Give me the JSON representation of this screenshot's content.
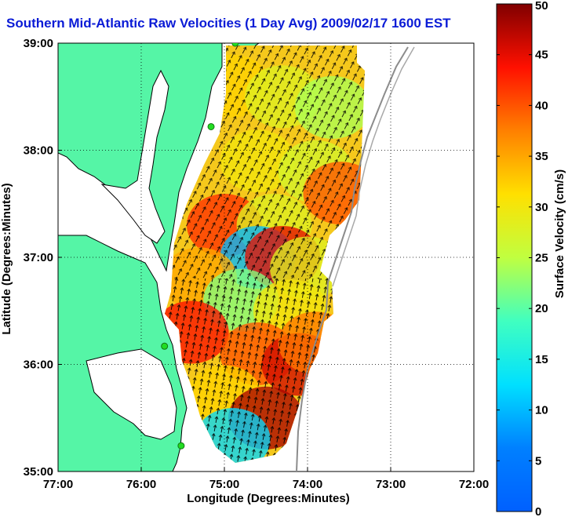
{
  "title": "Southern Mid-Atlantic Raw Velocities (1 Day Avg) 2009/02/17 1600 EST",
  "colors": {
    "land": "#55f5a6",
    "coast": "#000000",
    "grid": "#000000",
    "isobath": "#8c8c8c",
    "site": "#22dd22",
    "title": "#0a1bd6"
  },
  "chart_data": {
    "type": "heatmap",
    "xlabel": "Longitude (Degrees:Minutes)",
    "ylabel": "Latitude (Degrees:Minutes)",
    "xlim": [
      -77,
      -72
    ],
    "ylim": [
      35,
      39
    ],
    "xticks": [
      -77,
      -76,
      -75,
      -74,
      -73,
      -72
    ],
    "yticks": [
      35,
      36,
      37,
      38,
      39
    ],
    "xtick_labels": [
      "77:00",
      "76:00",
      "75:00",
      "74:00",
      "73:00",
      "72:00"
    ],
    "ytick_labels": [
      "35:00",
      "36:00",
      "37:00",
      "38:00",
      "39:00"
    ],
    "grid": true,
    "colorbar": {
      "label": "Surface Velocity (cm/s)",
      "range": [
        0,
        50
      ],
      "ticks": [
        0,
        5,
        10,
        15,
        20,
        25,
        30,
        35,
        40,
        45,
        50
      ],
      "colormap": "jet"
    },
    "hf_radar_sites": [
      {
        "lon": -74.87,
        "lat": 39.0
      },
      {
        "lon": -75.16,
        "lat": 38.22
      },
      {
        "lon": -75.72,
        "lat": 36.17
      },
      {
        "lon": -75.52,
        "lat": 35.24
      }
    ],
    "speed_regions": [
      {
        "lon": -74.9,
        "lat": 38.6,
        "speed": 32
      },
      {
        "lon": -74.3,
        "lat": 38.5,
        "speed": 28
      },
      {
        "lon": -73.7,
        "lat": 38.4,
        "speed": 24
      },
      {
        "lon": -74.6,
        "lat": 37.9,
        "speed": 30
      },
      {
        "lon": -73.9,
        "lat": 37.8,
        "speed": 27
      },
      {
        "lon": -73.6,
        "lat": 37.6,
        "speed": 40
      },
      {
        "lon": -75.0,
        "lat": 37.3,
        "speed": 42
      },
      {
        "lon": -74.4,
        "lat": 37.3,
        "speed": 28
      },
      {
        "lon": -74.6,
        "lat": 37.0,
        "speed": 10
      },
      {
        "lon": -74.3,
        "lat": 37.0,
        "speed": 45
      },
      {
        "lon": -74.0,
        "lat": 36.9,
        "speed": 28
      },
      {
        "lon": -75.3,
        "lat": 36.8,
        "speed": 35
      },
      {
        "lon": -74.8,
        "lat": 36.6,
        "speed": 22
      },
      {
        "lon": -74.2,
        "lat": 36.5,
        "speed": 30
      },
      {
        "lon": -75.4,
        "lat": 36.3,
        "speed": 44
      },
      {
        "lon": -74.6,
        "lat": 36.1,
        "speed": 40
      },
      {
        "lon": -74.1,
        "lat": 36.0,
        "speed": 46
      },
      {
        "lon": -73.9,
        "lat": 36.2,
        "speed": 38
      },
      {
        "lon": -75.0,
        "lat": 35.7,
        "speed": 32
      },
      {
        "lon": -74.5,
        "lat": 35.5,
        "speed": 48
      },
      {
        "lon": -74.9,
        "lat": 35.3,
        "speed": 12
      }
    ]
  }
}
